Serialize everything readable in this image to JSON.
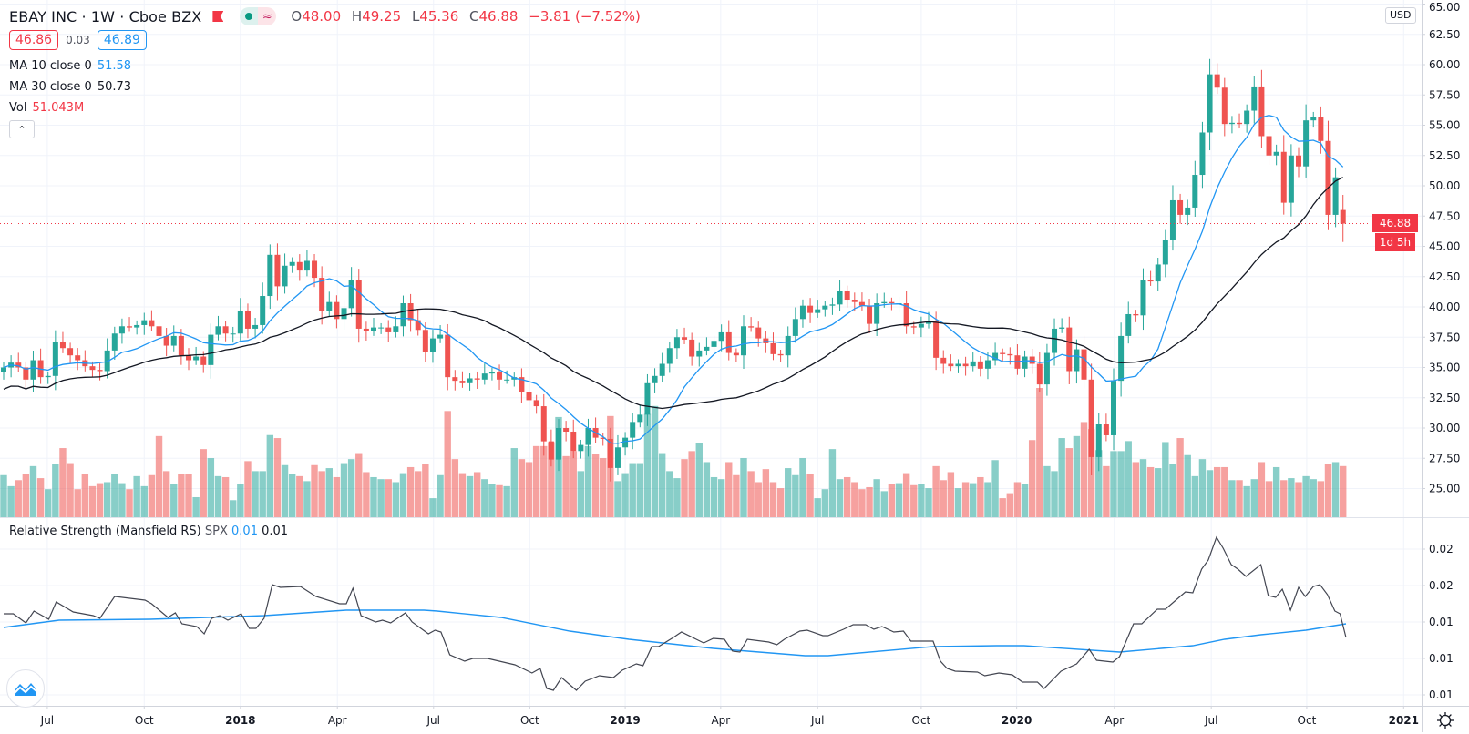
{
  "header": {
    "title": "EBAY INC · 1W · Cboe BZX",
    "o_label": "O",
    "o": "48.00",
    "h_label": "H",
    "h": "49.25",
    "l_label": "L",
    "l": "45.36",
    "c_label": "C",
    "c": "46.88",
    "change": "−3.81 (−7.52%)",
    "pill_icon": "≈"
  },
  "bid_ask": {
    "bid": "46.86",
    "spread": "0.03",
    "ask": "46.89"
  },
  "indicators": {
    "ma10": {
      "label": "MA 10 close 0",
      "value": "51.58"
    },
    "ma30": {
      "label": "MA 30 close 0",
      "value": "50.73"
    },
    "vol": {
      "label": "Vol",
      "value": "51.043M"
    },
    "collapse_icon": "⌃"
  },
  "rs_legend": {
    "label": "Relative Strength (Mansfield RS)",
    "symbol": "SPX",
    "value_ma": "0.01",
    "value_rs": "0.01"
  },
  "price_axis": {
    "currency": "USD",
    "last_price": "46.88",
    "countdown": "1d 5h"
  },
  "colors": {
    "up": "#26a69a",
    "down": "#ef5350",
    "ma10": "#2196f3",
    "ma30": "#131722",
    "rs": "#434651",
    "rs_ma": "#2196f3"
  },
  "chart_data": {
    "type": "candlestick",
    "title": "EBAY INC · 1W · Cboe BZX",
    "interval": "1W",
    "closes": [
      35.0,
      35.4,
      35.0,
      34.0,
      35.6,
      34.2,
      34.3,
      37.1,
      36.6,
      36.0,
      35.6,
      35.1,
      34.8,
      34.7,
      36.4,
      37.8,
      38.4,
      38.3,
      38.5,
      38.9,
      38.4,
      37.6,
      36.8,
      37.6,
      36.0,
      35.6,
      35.9,
      35.2,
      37.7,
      38.4,
      37.8,
      37.8,
      39.7,
      38.2,
      38.5,
      40.9,
      44.3,
      41.7,
      43.4,
      43.7,
      43.0,
      43.8,
      42.4,
      39.7,
      40.4,
      39.0,
      39.9,
      42.2,
      38.2,
      38.0,
      38.3,
      38.3,
      37.9,
      38.4,
      40.3,
      38.9,
      38.1,
      36.3,
      37.4,
      37.7,
      34.2,
      33.9,
      33.7,
      34.1,
      34.0,
      34.5,
      34.6,
      34.0,
      34.0,
      34.2,
      33.0,
      32.3,
      31.8,
      28.9,
      27.4,
      30.0,
      29.7,
      28.1,
      28.6,
      30.0,
      29.2,
      29.1,
      26.7,
      28.4,
      29.2,
      30.5,
      31.1,
      33.7,
      34.3,
      35.3,
      36.6,
      37.5,
      37.3,
      35.9,
      36.4,
      36.7,
      37.2,
      37.9,
      36.2,
      36.0,
      38.4,
      38.3,
      37.4,
      37.0,
      36.1,
      36.0,
      37.6,
      39.0,
      40.1,
      39.5,
      39.8,
      40.1,
      40.2,
      41.3,
      40.6,
      40.4,
      40.1,
      38.6,
      40.3,
      40.4,
      40.3,
      40.3,
      38.4,
      38.3,
      38.6,
      38.8,
      35.8,
      35.3,
      35.1,
      35.3,
      35.1,
      35.5,
      34.9,
      35.6,
      36.2,
      36.1,
      36.0,
      34.9,
      35.9,
      35.3,
      33.6,
      36.2,
      38.2,
      38.3,
      34.7,
      36.5,
      34.0,
      27.6,
      30.3,
      29.4,
      33.9,
      37.6,
      39.4,
      39.3,
      42.2,
      42.1,
      43.5,
      45.5,
      48.8,
      47.6,
      48.2,
      50.9,
      54.4,
      59.2,
      58.1,
      55.1,
      55.2,
      55.1,
      56.2,
      58.2,
      54.1,
      52.5,
      52.8,
      48.6,
      52.5,
      51.6,
      55.4,
      55.7,
      53.7,
      47.6,
      50.7,
      46.88
    ],
    "last_candle": {
      "o": 48.0,
      "h": 49.25,
      "l": 45.36,
      "c": 46.88
    },
    "volumes_m": [
      42,
      31,
      37,
      43,
      51,
      39,
      28,
      53,
      69,
      54,
      28,
      43,
      31,
      34,
      35,
      43,
      34,
      28,
      41,
      31,
      42,
      81,
      46,
      33,
      43,
      43,
      20,
      68,
      59,
      41,
      40,
      17,
      33,
      56,
      46,
      46,
      82,
      79,
      52,
      43,
      41,
      36,
      52,
      46,
      49,
      40,
      54,
      58,
      64,
      45,
      40,
      38,
      38,
      35,
      44,
      50,
      46,
      53,
      19,
      42,
      106,
      58,
      44,
      41,
      45,
      38,
      33,
      32,
      31,
      69,
      58,
      55,
      71,
      71,
      75,
      100,
      61,
      66,
      46,
      71,
      63,
      59,
      101,
      36,
      44,
      54,
      54,
      103,
      111,
      64,
      46,
      39,
      58,
      66,
      74,
      55,
      40,
      38,
      55,
      42,
      59,
      46,
      35,
      48,
      35,
      29,
      49,
      42,
      59,
      43,
      19,
      28,
      68,
      38,
      40,
      35,
      28,
      30,
      38,
      26,
      33,
      34,
      44,
      32,
      33,
      29,
      51,
      37,
      45,
      29,
      35,
      34,
      40,
      35,
      57,
      19,
      24,
      35,
      33,
      77,
      129,
      51,
      46,
      79,
      69,
      81,
      95,
      88,
      67,
      51,
      66,
      66,
      76,
      55,
      58,
      50,
      49,
      75,
      53,
      79,
      62,
      41,
      58,
      47,
      50,
      50,
      37,
      37,
      31,
      38,
      55,
      36,
      50,
      37,
      39,
      35,
      41,
      38,
      36,
      53,
      55,
      51.043
    ],
    "ylim": [
      25,
      65
    ],
    "price_ticks": [
      "65.00",
      "62.50",
      "60.00",
      "57.50",
      "55.00",
      "52.50",
      "50.00",
      "47.50",
      "45.00",
      "42.50",
      "40.00",
      "37.50",
      "35.00",
      "32.50",
      "30.00",
      "27.50",
      "25.00"
    ],
    "time_ticks": [
      {
        "label": "Jul",
        "week": 5.9,
        "major": false
      },
      {
        "label": "Oct",
        "week": 19.0,
        "major": false
      },
      {
        "label": "2018",
        "week": 32.0,
        "major": true
      },
      {
        "label": "Apr",
        "week": 45.1,
        "major": false
      },
      {
        "label": "Jul",
        "week": 58.1,
        "major": false
      },
      {
        "label": "Oct",
        "week": 71.1,
        "major": false
      },
      {
        "label": "2019",
        "week": 84.0,
        "major": true
      },
      {
        "label": "Apr",
        "week": 96.9,
        "major": false
      },
      {
        "label": "Jul",
        "week": 110.0,
        "major": false
      },
      {
        "label": "Oct",
        "week": 124.0,
        "major": false
      },
      {
        "label": "2020",
        "week": 136.9,
        "major": true
      },
      {
        "label": "Apr",
        "week": 150.1,
        "major": false
      },
      {
        "label": "Jul",
        "week": 163.2,
        "major": false
      },
      {
        "label": "Oct",
        "week": 176.1,
        "major": false
      },
      {
        "label": "2021",
        "week": 189.2,
        "major": true
      }
    ],
    "moving_averages": [
      {
        "name": "MA 10",
        "period": 10
      },
      {
        "name": "MA 30",
        "period": 30
      }
    ],
    "rs": {
      "ticks": [
        "0.02",
        "0.02",
        "0.01",
        "0.01",
        "0.01"
      ],
      "tick_values": [
        0.022,
        0.018,
        0.014,
        0.01,
        0.006
      ],
      "line": [
        [
          0,
          0.0149
        ],
        [
          1.3,
          0.0149
        ],
        [
          3,
          0.0139
        ],
        [
          4.1,
          0.0152
        ],
        [
          6.1,
          0.0143
        ],
        [
          7.1,
          0.0162
        ],
        [
          9.4,
          0.0151
        ],
        [
          12.1,
          0.0147
        ],
        [
          13,
          0.0144
        ],
        [
          15,
          0.0168
        ],
        [
          19.1,
          0.0164
        ],
        [
          20,
          0.016
        ],
        [
          22.2,
          0.0145
        ],
        [
          23.2,
          0.015
        ],
        [
          24.1,
          0.0138
        ],
        [
          26.1,
          0.0135
        ],
        [
          27.1,
          0.0127
        ],
        [
          28.1,
          0.0144
        ],
        [
          29.2,
          0.0147
        ],
        [
          30.3,
          0.0142
        ],
        [
          32.1,
          0.0149
        ],
        [
          33.2,
          0.0133
        ],
        [
          34.1,
          0.0133
        ],
        [
          35.2,
          0.0144
        ],
        [
          36.3,
          0.0181
        ],
        [
          37.4,
          0.0178
        ],
        [
          40.1,
          0.0179
        ],
        [
          42.2,
          0.0168
        ],
        [
          45.4,
          0.016
        ],
        [
          46.3,
          0.016
        ],
        [
          47.2,
          0.0177
        ],
        [
          48.3,
          0.0147
        ],
        [
          50.3,
          0.014
        ],
        [
          51.2,
          0.0142
        ],
        [
          52.3,
          0.0139
        ],
        [
          54.3,
          0.015
        ],
        [
          55.2,
          0.014
        ],
        [
          57.4,
          0.0127
        ],
        [
          58.3,
          0.0131
        ],
        [
          59.1,
          0.0129
        ],
        [
          60.3,
          0.0104
        ],
        [
          62.3,
          0.0097
        ],
        [
          63.4,
          0.01
        ],
        [
          65.4,
          0.01
        ],
        [
          69.1,
          0.0093
        ],
        [
          71.4,
          0.0084
        ],
        [
          72.5,
          0.0089
        ],
        [
          73.4,
          0.0067
        ],
        [
          74.3,
          0.0065
        ],
        [
          75.4,
          0.0079
        ],
        [
          77.4,
          0.0065
        ],
        [
          78.6,
          0.0075
        ],
        [
          80.5,
          0.0081
        ],
        [
          82.4,
          0.0079
        ],
        [
          83.6,
          0.0087
        ],
        [
          85.5,
          0.0094
        ],
        [
          86.4,
          0.0092
        ],
        [
          87.6,
          0.0113
        ],
        [
          88.5,
          0.0113
        ],
        [
          90.5,
          0.0123
        ],
        [
          91.6,
          0.0129
        ],
        [
          94.6,
          0.0117
        ],
        [
          95.9,
          0.0122
        ],
        [
          97.4,
          0.0121
        ],
        [
          98.5,
          0.0108
        ],
        [
          99.5,
          0.0107
        ],
        [
          100.5,
          0.0121
        ],
        [
          103.4,
          0.0118
        ],
        [
          104.5,
          0.0115
        ],
        [
          105.5,
          0.0121
        ],
        [
          107.6,
          0.013
        ],
        [
          108.6,
          0.0131
        ],
        [
          110.7,
          0.0125
        ],
        [
          111.4,
          0.0125
        ],
        [
          113.5,
          0.0132
        ],
        [
          114.8,
          0.0137
        ],
        [
          116.5,
          0.0137
        ],
        [
          117.6,
          0.0132
        ],
        [
          118.7,
          0.0135
        ],
        [
          120.3,
          0.0129
        ],
        [
          121.6,
          0.013
        ],
        [
          122.6,
          0.0119
        ],
        [
          125.6,
          0.0119
        ],
        [
          126.6,
          0.0097
        ],
        [
          127.5,
          0.0089
        ],
        [
          128.6,
          0.0086
        ],
        [
          131.6,
          0.0085
        ],
        [
          132.6,
          0.0081
        ],
        [
          134.5,
          0.0084
        ],
        [
          136.3,
          0.0082
        ],
        [
          137.7,
          0.0074
        ],
        [
          139.7,
          0.0074
        ],
        [
          140.6,
          0.0067
        ],
        [
          142.9,
          0.0086
        ],
        [
          145,
          0.0094
        ],
        [
          146.7,
          0.011
        ],
        [
          147.7,
          0.0098
        ],
        [
          149.9,
          0.0096
        ],
        [
          150.8,
          0.0102
        ],
        [
          152.7,
          0.0138
        ],
        [
          153.8,
          0.0138
        ],
        [
          155.9,
          0.0154
        ],
        [
          157,
          0.0154
        ],
        [
          159.7,
          0.0173
        ],
        [
          160.7,
          0.0172
        ],
        [
          161.9,
          0.0198
        ],
        [
          162.8,
          0.0208
        ],
        [
          163.9,
          0.0233
        ],
        [
          164.8,
          0.0221
        ],
        [
          165.9,
          0.0203
        ],
        [
          166.8,
          0.0198
        ],
        [
          167.9,
          0.019
        ],
        [
          169.9,
          0.0203
        ],
        [
          170.9,
          0.0169
        ],
        [
          171.9,
          0.0167
        ],
        [
          172.8,
          0.0176
        ],
        [
          173.9,
          0.0153
        ],
        [
          175,
          0.0178
        ],
        [
          175.9,
          0.0168
        ],
        [
          177,
          0.0179
        ],
        [
          177.9,
          0.0181
        ],
        [
          178.9,
          0.017
        ],
        [
          179.9,
          0.0152
        ],
        [
          180.6,
          0.0149
        ],
        [
          181.4,
          0.0123
        ]
      ],
      "ma": [
        [
          0,
          0.0134
        ],
        [
          7.5,
          0.0142
        ],
        [
          19.8,
          0.0143
        ],
        [
          35.2,
          0.0147
        ],
        [
          46.3,
          0.0153
        ],
        [
          56.8,
          0.0153
        ],
        [
          58.6,
          0.0152
        ],
        [
          67.2,
          0.0145
        ],
        [
          76.5,
          0.013
        ],
        [
          84.5,
          0.0121
        ],
        [
          95.9,
          0.0111
        ],
        [
          108.3,
          0.0103
        ],
        [
          111.4,
          0.0103
        ],
        [
          125.6,
          0.0113
        ],
        [
          134.2,
          0.0114
        ],
        [
          137.9,
          0.0114
        ],
        [
          150.8,
          0.0107
        ],
        [
          160.7,
          0.0114
        ],
        [
          165,
          0.0121
        ],
        [
          169.9,
          0.0126
        ],
        [
          176,
          0.0131
        ],
        [
          181.4,
          0.0138
        ]
      ]
    }
  }
}
